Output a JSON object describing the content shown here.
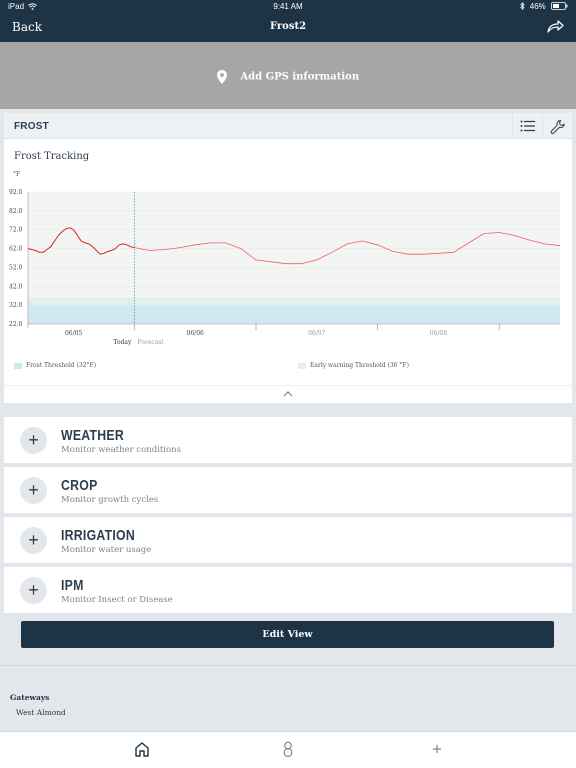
{
  "status_bar": {
    "device": "iPad",
    "time": "9:41 AM",
    "battery": "46%"
  },
  "nav": {
    "back": "Back",
    "title": "Frost2"
  },
  "gps": {
    "label": "Add GPS information"
  },
  "frost": {
    "name": "FROST",
    "chart_title": "Frost Tracking",
    "unit": "°F",
    "legend": [
      {
        "label": "Frost Threshold (32°F)",
        "color": "#cfe8f1"
      },
      {
        "label": "Early warning Threshold (36 °F)",
        "color": "#e4efe8"
      }
    ]
  },
  "chart_data": {
    "type": "line",
    "ylabel": "°F",
    "ylim": [
      22,
      92
    ],
    "yticks": [
      "92.0",
      "82.0",
      "72.0",
      "62.0",
      "52.0",
      "42.0",
      "32.0",
      "22.0"
    ],
    "date_labels": [
      "06/05",
      "06/06",
      "06/07",
      "06/08"
    ],
    "today_label": "Today",
    "forecast_label": "Forecast",
    "thresholds": {
      "frost": 32,
      "early_warning": 36
    },
    "series": [
      {
        "segment": "observed",
        "color": "#e02020",
        "x": [
          0,
          0.25,
          0.5,
          0.75,
          1,
          1.25,
          1.5,
          1.75,
          2,
          2.25,
          2.5,
          2.75,
          3,
          3.25,
          3.5,
          3.75,
          4,
          4.25,
          4.5,
          4.75,
          5,
          5.25,
          5.5,
          5.75,
          6,
          6.25,
          6.5,
          6.75,
          7
        ],
        "y": [
          62,
          61.5,
          61,
          60,
          60,
          61.5,
          63,
          66,
          69,
          71,
          72.5,
          73,
          72,
          69,
          66,
          65,
          64.5,
          63,
          61,
          59,
          59.5,
          60.5,
          61,
          62,
          64,
          64.5,
          64,
          63,
          62.5
        ]
      },
      {
        "segment": "forecast",
        "color": "#f06060",
        "x": [
          7,
          8,
          9,
          10,
          11,
          12,
          13,
          14,
          15,
          16,
          17,
          18,
          19,
          20,
          21,
          22,
          23,
          24,
          25,
          26,
          27,
          28,
          29,
          30,
          31,
          32,
          33,
          34,
          35
        ],
        "y": [
          62.5,
          61,
          61.5,
          62.5,
          64,
          65,
          65,
          62,
          56,
          55,
          54,
          54,
          56,
          60,
          64.5,
          66,
          64,
          60.5,
          59,
          59,
          59.5,
          60,
          65,
          70,
          70.5,
          69,
          66.5,
          64.5,
          63.5
        ]
      }
    ]
  },
  "sections": [
    {
      "title": "WEATHER",
      "subtitle": "Monitor weather conditions"
    },
    {
      "title": "CROP",
      "subtitle": "Monitor growth cycles"
    },
    {
      "title": "IRRIGATION",
      "subtitle": "Monitor water usage"
    },
    {
      "title": "IPM",
      "subtitle": "Monitor Insect or Disease"
    }
  ],
  "edit_view": "Edit View",
  "gateways": {
    "title": "Gateways",
    "items": [
      "West Almond"
    ]
  },
  "icons": {
    "status": [
      "wifi-icon",
      "bluetooth-icon",
      "battery-icon"
    ],
    "nav": [
      "share-icon"
    ],
    "gps": "location-pin-icon",
    "frost_actions": [
      "list-icon",
      "wrench-icon"
    ],
    "collapse": "chevron-up-icon",
    "section_toggle": "plus-icon",
    "tabs": [
      "home-icon",
      "person-icon",
      "plus-icon"
    ]
  }
}
